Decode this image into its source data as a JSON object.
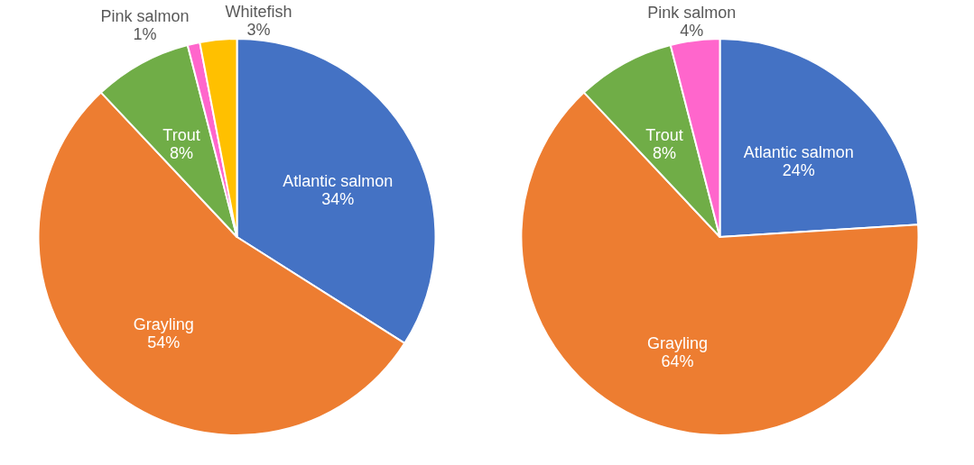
{
  "chart_data": [
    {
      "type": "pie",
      "categories": [
        "Atlantic salmon",
        "Grayling",
        "Trout",
        "Pink salmon",
        "Whitefish"
      ],
      "values": [
        34,
        54,
        8,
        1,
        3
      ],
      "colors": [
        "#4472c4",
        "#ed7d31",
        "#70ad47",
        "#ff66cc",
        "#ffc000"
      ],
      "value_labels": [
        "34%",
        "54%",
        "8%",
        "1%",
        "3%"
      ]
    },
    {
      "type": "pie",
      "categories": [
        "Atlantic salmon",
        "Grayling",
        "Trout",
        "Pink salmon"
      ],
      "values": [
        24,
        64,
        8,
        4
      ],
      "colors": [
        "#4472c4",
        "#ed7d31",
        "#70ad47",
        "#ff66cc"
      ],
      "value_labels": [
        "24%",
        "64%",
        "8%",
        "4%"
      ]
    }
  ]
}
